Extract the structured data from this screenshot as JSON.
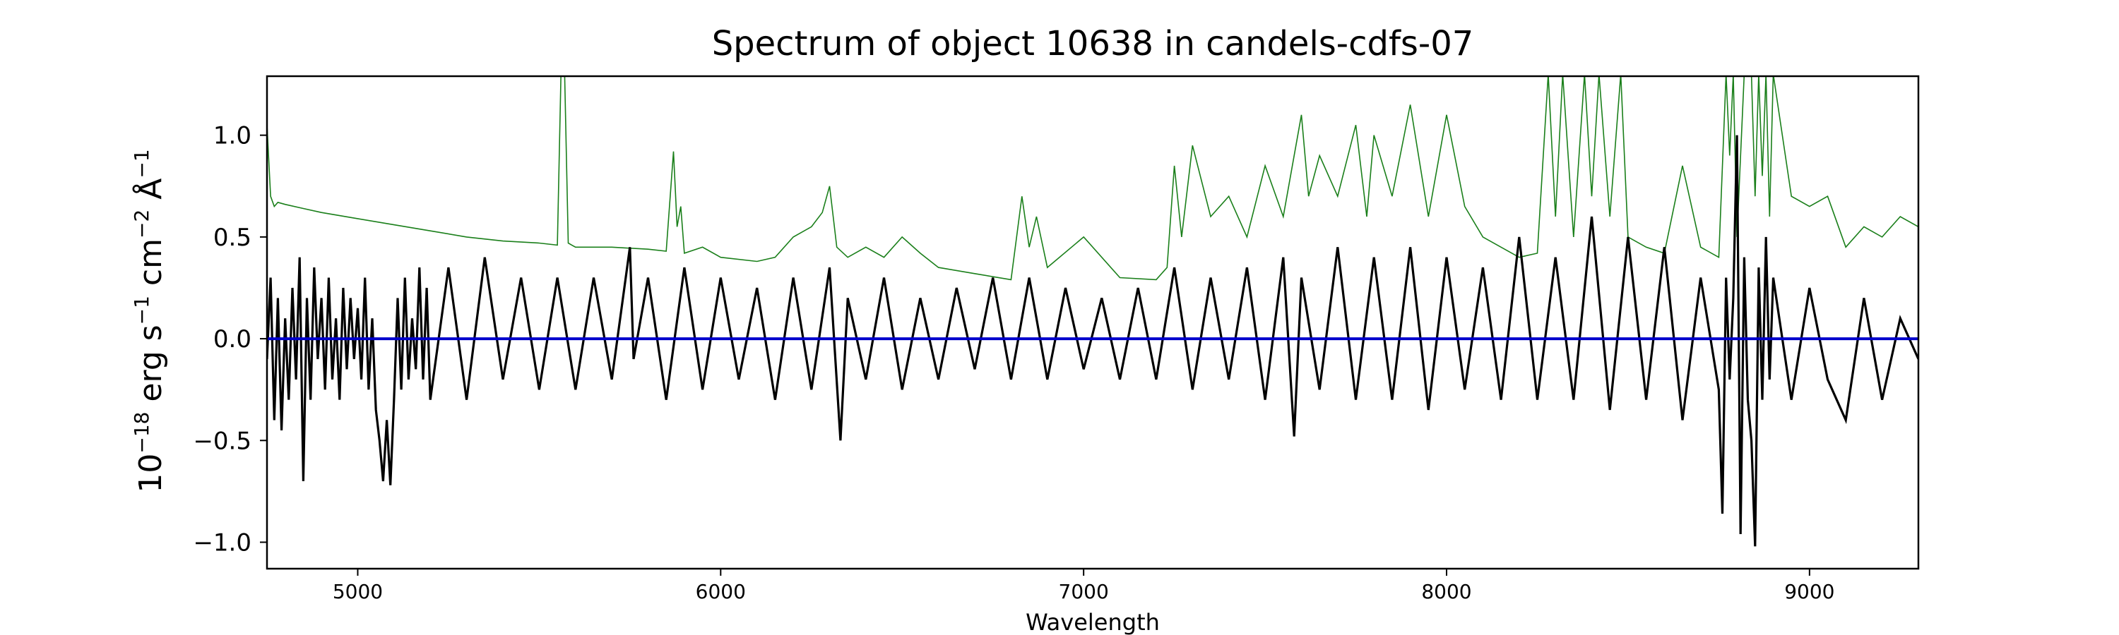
{
  "chart_data": {
    "type": "line",
    "title": "Spectrum of object 10638 in candels-cdfs-07",
    "xlabel": "Wavelength",
    "ylabel": {
      "prefix": "10",
      "prefix_exp": "−18",
      "unit1": " erg s",
      "unit1_exp": "−1",
      "unit2": " cm",
      "unit2_exp": "−2",
      "unit3": " Å",
      "unit3_exp": "−1"
    },
    "xlim": [
      4750,
      9300
    ],
    "ylim": [
      -1.13,
      1.29
    ],
    "xticks": [
      5000,
      6000,
      7000,
      8000,
      9000
    ],
    "xtick_labels": [
      "5000",
      "6000",
      "7000",
      "8000",
      "9000"
    ],
    "yticks": [
      -1.0,
      -0.5,
      0.0,
      0.5,
      1.0
    ],
    "ytick_labels": [
      "−1.0",
      "−0.5",
      "0.0",
      "0.5",
      "1.0"
    ],
    "grid": false,
    "series": [
      {
        "role": "flux",
        "color": "#000000",
        "x": [
          4750,
          4760,
          4770,
          4780,
          4790,
          4800,
          4810,
          4820,
          4830,
          4840,
          4850,
          4860,
          4870,
          4880,
          4890,
          4900,
          4910,
          4920,
          4930,
          4940,
          4950,
          4960,
          4970,
          4980,
          4990,
          5000,
          5010,
          5020,
          5030,
          5040,
          5050,
          5060,
          5070,
          5080,
          5090,
          5100,
          5110,
          5120,
          5130,
          5140,
          5150,
          5160,
          5170,
          5180,
          5190,
          5200,
          5250,
          5300,
          5350,
          5400,
          5450,
          5500,
          5550,
          5600,
          5650,
          5700,
          5750,
          5760,
          5800,
          5850,
          5900,
          5950,
          6000,
          6050,
          6100,
          6150,
          6200,
          6250,
          6300,
          6330,
          6350,
          6400,
          6450,
          6500,
          6550,
          6600,
          6650,
          6700,
          6750,
          6800,
          6850,
          6900,
          6950,
          7000,
          7050,
          7100,
          7150,
          7200,
          7250,
          7300,
          7350,
          7400,
          7450,
          7500,
          7550,
          7580,
          7600,
          7650,
          7700,
          7750,
          7800,
          7850,
          7900,
          7950,
          8000,
          8050,
          8100,
          8150,
          8200,
          8250,
          8300,
          8350,
          8400,
          8450,
          8500,
          8550,
          8600,
          8650,
          8700,
          8750,
          8760,
          8770,
          8780,
          8790,
          8800,
          8810,
          8820,
          8830,
          8840,
          8850,
          8860,
          8870,
          8880,
          8890,
          8900,
          8950,
          9000,
          9050,
          9100,
          9150,
          9200,
          9250,
          9300
        ],
        "y": [
          -0.1,
          0.3,
          -0.4,
          0.2,
          -0.45,
          0.1,
          -0.3,
          0.25,
          -0.2,
          0.4,
          -0.7,
          0.2,
          -0.3,
          0.35,
          -0.1,
          0.2,
          -0.25,
          0.3,
          -0.2,
          0.1,
          -0.3,
          0.25,
          -0.15,
          0.2,
          -0.1,
          0.15,
          -0.2,
          0.3,
          -0.25,
          0.1,
          -0.35,
          -0.5,
          -0.7,
          -0.4,
          -0.72,
          -0.3,
          0.2,
          -0.25,
          0.3,
          -0.2,
          0.1,
          -0.15,
          0.35,
          -0.2,
          0.25,
          -0.3,
          0.35,
          -0.3,
          0.4,
          -0.2,
          0.3,
          -0.25,
          0.3,
          -0.25,
          0.3,
          -0.2,
          0.45,
          -0.1,
          0.3,
          -0.3,
          0.35,
          -0.25,
          0.3,
          -0.2,
          0.25,
          -0.3,
          0.3,
          -0.25,
          0.35,
          -0.5,
          0.2,
          -0.2,
          0.3,
          -0.25,
          0.2,
          -0.2,
          0.25,
          -0.15,
          0.3,
          -0.2,
          0.3,
          -0.2,
          0.25,
          -0.15,
          0.2,
          -0.2,
          0.25,
          -0.2,
          0.35,
          -0.25,
          0.3,
          -0.2,
          0.35,
          -0.3,
          0.4,
          -0.48,
          0.3,
          -0.25,
          0.45,
          -0.3,
          0.4,
          -0.3,
          0.45,
          -0.35,
          0.4,
          -0.25,
          0.35,
          -0.3,
          0.5,
          -0.3,
          0.4,
          -0.3,
          0.6,
          -0.35,
          0.5,
          -0.3,
          0.45,
          -0.4,
          0.3,
          -0.25,
          -0.86,
          0.3,
          -0.2,
          0.2,
          1.0,
          -0.96,
          0.4,
          -0.3,
          -0.5,
          -1.02,
          0.35,
          -0.3,
          0.5,
          -0.2,
          0.3,
          -0.3,
          0.25,
          -0.2,
          -0.4,
          0.2,
          -0.3,
          0.1,
          -0.1
        ]
      },
      {
        "role": "uncertainty",
        "color": "#1a7f1a",
        "x": [
          4750,
          4760,
          4770,
          4780,
          4800,
          4850,
          4900,
          5000,
          5100,
          5200,
          5300,
          5400,
          5500,
          5550,
          5560,
          5570,
          5580,
          5590,
          5600,
          5700,
          5800,
          5850,
          5870,
          5880,
          5890,
          5900,
          5950,
          6000,
          6100,
          6150,
          6200,
          6250,
          6280,
          6300,
          6320,
          6350,
          6400,
          6450,
          6500,
          6550,
          6600,
          6700,
          6800,
          6830,
          6850,
          6870,
          6900,
          7000,
          7100,
          7200,
          7230,
          7250,
          7270,
          7300,
          7350,
          7400,
          7450,
          7500,
          7550,
          7600,
          7620,
          7650,
          7700,
          7750,
          7780,
          7800,
          7850,
          7900,
          7950,
          8000,
          8050,
          8100,
          8150,
          8200,
          8250,
          8280,
          8300,
          8320,
          8350,
          8380,
          8400,
          8420,
          8450,
          8480,
          8500,
          8550,
          8600,
          8650,
          8700,
          8750,
          8770,
          8780,
          8790,
          8800,
          8820,
          8840,
          8850,
          8860,
          8870,
          8880,
          8890,
          8900,
          8950,
          9000,
          9050,
          9100,
          9150,
          9200,
          9250,
          9300
        ],
        "y": [
          1.05,
          0.7,
          0.65,
          0.67,
          0.66,
          0.64,
          0.62,
          0.59,
          0.56,
          0.53,
          0.5,
          0.48,
          0.47,
          0.46,
          1.3,
          1.3,
          0.47,
          0.46,
          0.45,
          0.45,
          0.44,
          0.43,
          0.92,
          0.55,
          0.65,
          0.42,
          0.45,
          0.4,
          0.38,
          0.4,
          0.5,
          0.55,
          0.62,
          0.75,
          0.45,
          0.4,
          0.45,
          0.4,
          0.5,
          0.42,
          0.35,
          0.32,
          0.29,
          0.7,
          0.45,
          0.6,
          0.35,
          0.5,
          0.3,
          0.29,
          0.35,
          0.85,
          0.5,
          0.95,
          0.6,
          0.7,
          0.5,
          0.85,
          0.6,
          1.1,
          0.7,
          0.9,
          0.7,
          1.05,
          0.6,
          1.0,
          0.7,
          1.15,
          0.6,
          1.1,
          0.65,
          0.5,
          0.45,
          0.4,
          0.42,
          1.3,
          0.6,
          1.3,
          0.5,
          1.3,
          0.7,
          1.3,
          0.6,
          1.3,
          0.5,
          0.45,
          0.42,
          0.85,
          0.45,
          0.4,
          1.3,
          0.9,
          1.3,
          0.5,
          1.3,
          1.3,
          0.7,
          1.3,
          0.8,
          1.3,
          0.6,
          1.3,
          0.7,
          0.65,
          0.7,
          0.45,
          0.55,
          0.5,
          0.6,
          0.55
        ]
      },
      {
        "role": "zero-line",
        "color": "#0000cc",
        "x": [
          4750,
          9300
        ],
        "y": [
          0.0,
          0.0
        ]
      }
    ]
  }
}
